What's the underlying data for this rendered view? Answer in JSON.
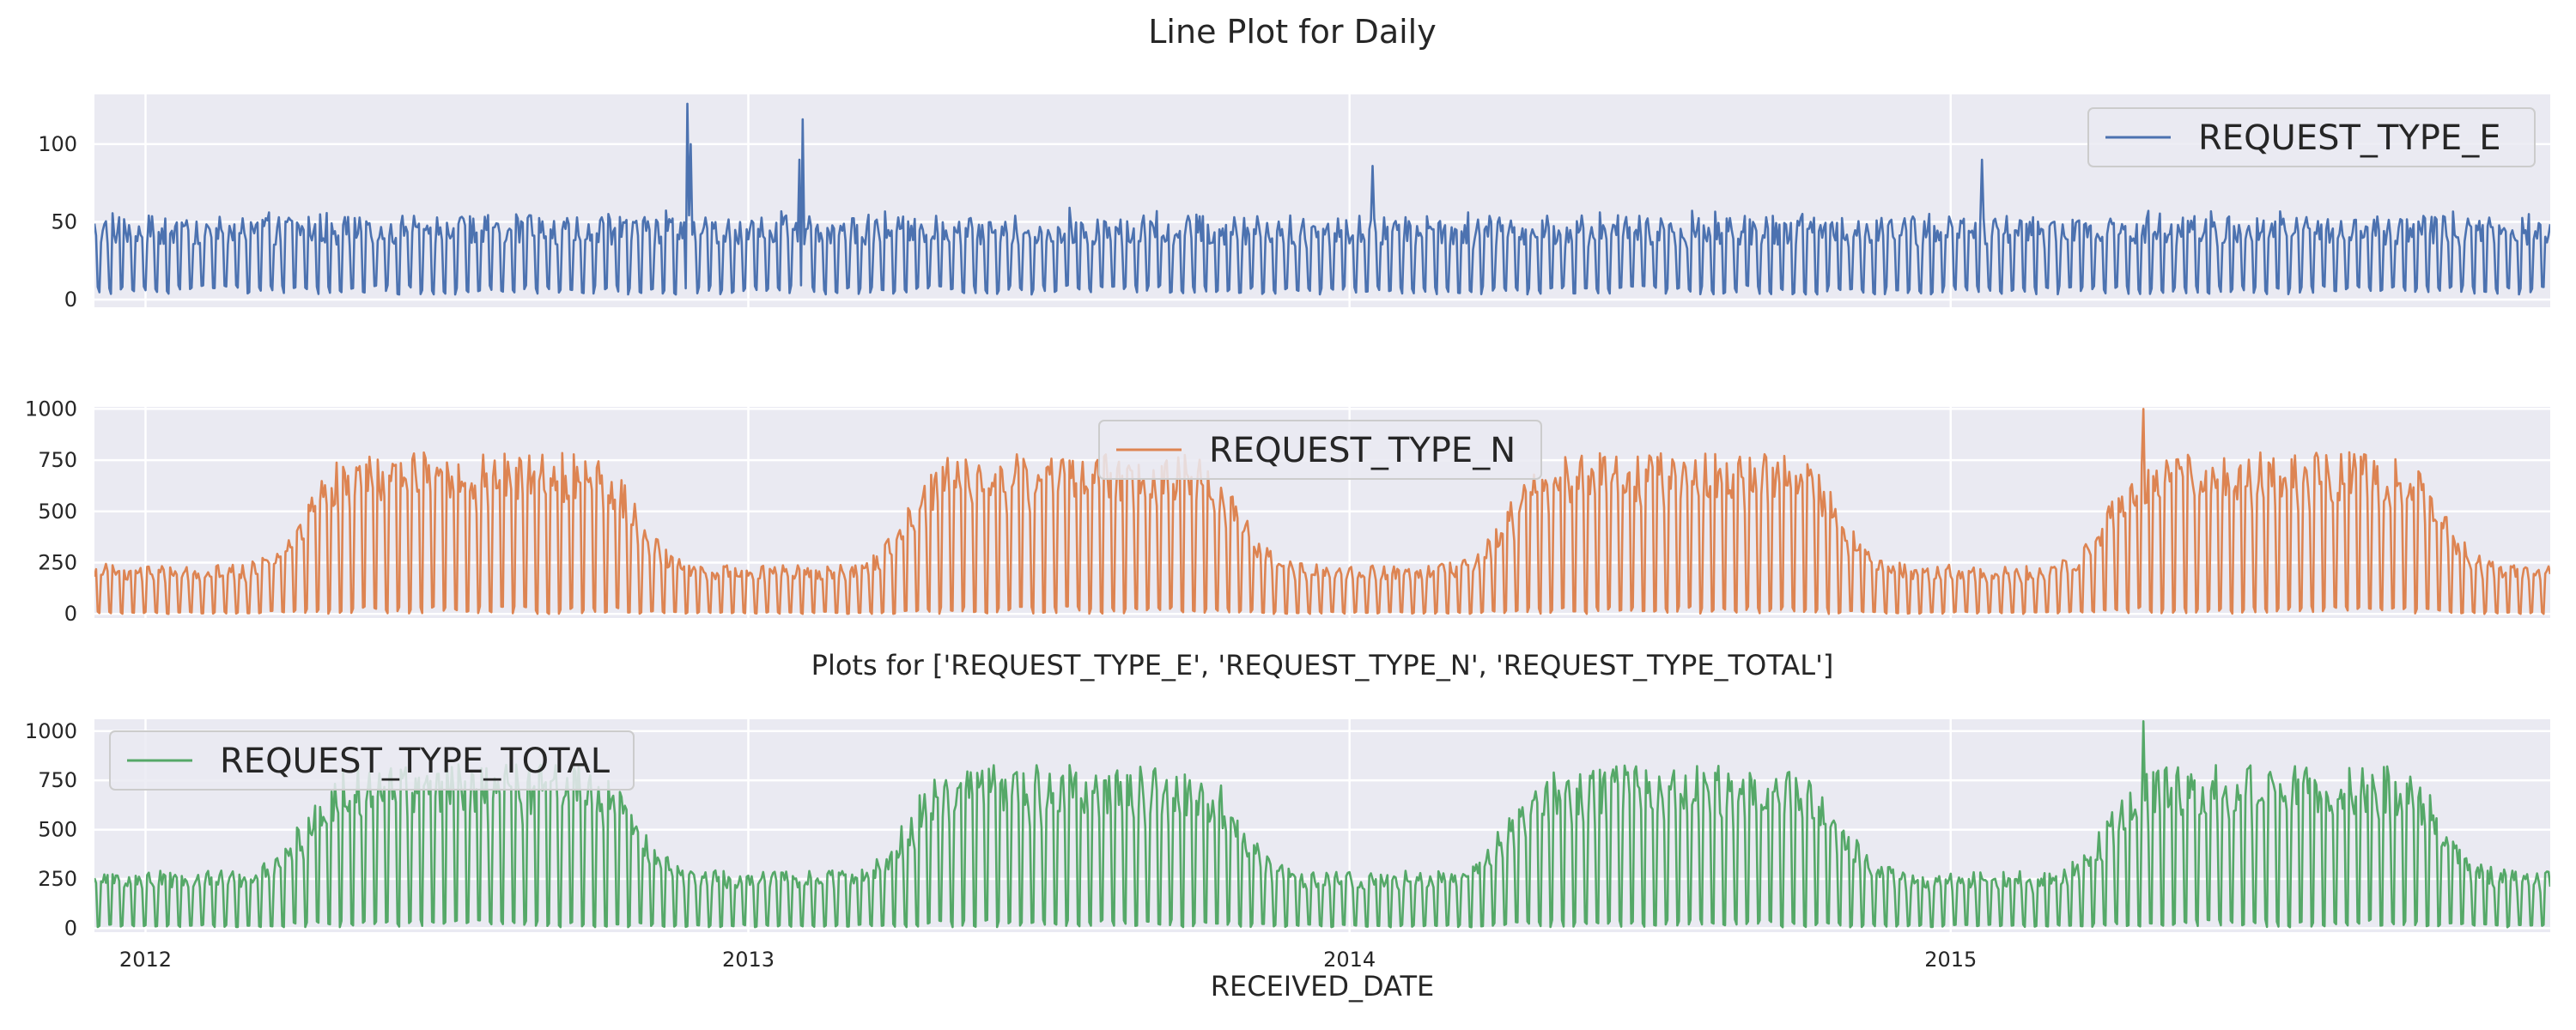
{
  "figure": {
    "title": "Line Plot for Daily",
    "subtitle": "Plots for ['REQUEST_TYPE_E', 'REQUEST_TYPE_N', 'REQUEST_TYPE_TOTAL']",
    "xlabel": "RECEIVED_DATE"
  },
  "chart_data": [
    {
      "type": "line",
      "series": [
        {
          "name": "REQUEST_TYPE_E",
          "color": "#4c72b0"
        }
      ],
      "x_range": [
        "2011-12-01",
        "2015-12-31"
      ],
      "x_ticks": [
        "2012",
        "2013",
        "2014",
        "2015"
      ],
      "ylim": [
        -5,
        132
      ],
      "y_ticks": [
        "0",
        "50",
        "100"
      ],
      "legend": "top-right",
      "grid": true,
      "profile": {
        "base": 8,
        "amp": 42
      },
      "spikes": [
        {
          "date": "2012-11-25",
          "value": 126
        },
        {
          "date": "2012-11-27",
          "value": 100
        },
        {
          "date": "2013-02-03",
          "value": 116
        },
        {
          "date": "2013-02-01",
          "value": 90
        },
        {
          "date": "2014-01-15",
          "value": 86
        },
        {
          "date": "2015-01-20",
          "value": 90
        }
      ]
    },
    {
      "type": "line",
      "series": [
        {
          "name": "REQUEST_TYPE_N",
          "color": "#dd8452"
        }
      ],
      "x_range": [
        "2011-12-01",
        "2015-12-31"
      ],
      "x_ticks": [
        "2012",
        "2013",
        "2014",
        "2015"
      ],
      "ylim": [
        -20,
        1010
      ],
      "y_ticks": [
        "0",
        "250",
        "500",
        "750",
        "1000"
      ],
      "legend": "upper-center",
      "grid": true,
      "profile": {
        "base": 0,
        "winter_peak": 230,
        "summer_peak": 760
      },
      "spikes": [
        {
          "date": "2015-04-28",
          "value": 1000
        }
      ]
    },
    {
      "type": "line",
      "series": [
        {
          "name": "REQUEST_TYPE_TOTAL",
          "color": "#55a868"
        }
      ],
      "x_range": [
        "2011-12-01",
        "2015-12-31"
      ],
      "x_ticks": [
        "2012",
        "2013",
        "2014",
        "2015"
      ],
      "ylim": [
        -20,
        1060
      ],
      "y_ticks": [
        "0",
        "250",
        "500",
        "750",
        "1000"
      ],
      "legend": "top-left",
      "grid": true,
      "profile": {
        "base": 5,
        "winter_peak": 280,
        "summer_peak": 800
      },
      "spikes": [
        {
          "date": "2015-04-28",
          "value": 1050
        }
      ]
    }
  ]
}
